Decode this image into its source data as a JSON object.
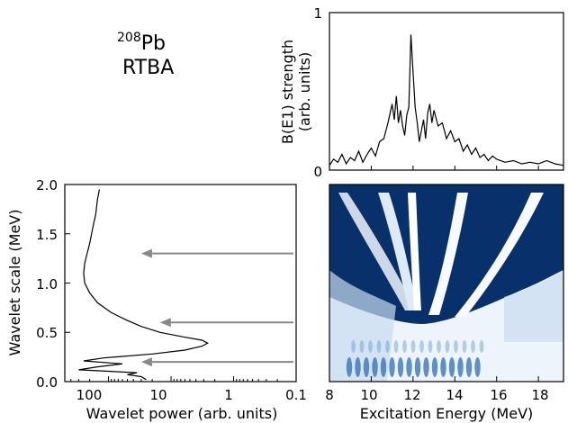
{
  "chart_data": [
    {
      "id": "strength",
      "type": "line",
      "title_sup": "208",
      "title_main": "Pb",
      "title_line2": "RTBA",
      "ylabel_line1": "B(E1) strength",
      "ylabel_line2": "(arb. units)",
      "ylim": [
        0,
        1
      ],
      "xlim": [
        8,
        19.2
      ],
      "yticks": [
        "0",
        "1"
      ],
      "x": [
        8.0,
        8.2,
        8.4,
        8.6,
        8.8,
        9.0,
        9.2,
        9.4,
        9.6,
        9.8,
        10.0,
        10.2,
        10.4,
        10.6,
        10.8,
        11.0,
        11.1,
        11.2,
        11.3,
        11.4,
        11.5,
        11.6,
        11.7,
        11.8,
        11.9,
        12.0,
        12.1,
        12.2,
        12.3,
        12.4,
        12.5,
        12.6,
        12.7,
        12.8,
        12.9,
        13.0,
        13.2,
        13.4,
        13.6,
        13.8,
        14.0,
        14.2,
        14.4,
        14.6,
        14.8,
        15.0,
        15.2,
        15.4,
        15.6,
        15.8,
        16.0,
        16.4,
        16.8,
        17.2,
        17.6,
        18.0,
        18.4,
        18.8,
        19.2
      ],
      "y": [
        0.03,
        0.07,
        0.05,
        0.1,
        0.04,
        0.08,
        0.06,
        0.12,
        0.05,
        0.1,
        0.14,
        0.09,
        0.18,
        0.2,
        0.3,
        0.42,
        0.32,
        0.47,
        0.3,
        0.38,
        0.28,
        0.22,
        0.35,
        0.4,
        0.86,
        0.62,
        0.4,
        0.3,
        0.18,
        0.25,
        0.32,
        0.2,
        0.36,
        0.42,
        0.3,
        0.38,
        0.28,
        0.3,
        0.2,
        0.25,
        0.18,
        0.2,
        0.12,
        0.16,
        0.1,
        0.14,
        0.08,
        0.1,
        0.06,
        0.09,
        0.07,
        0.05,
        0.06,
        0.04,
        0.05,
        0.04,
        0.06,
        0.04,
        0.03
      ]
    },
    {
      "id": "wavelet-power",
      "type": "line",
      "xlabel": "Wavelet power (arb. units)",
      "ylabel": "Wavelet scale (MeV)",
      "x_scale": "log-reversed",
      "xlim": [
        500,
        0.1
      ],
      "ylim": [
        0,
        2
      ],
      "xticks": [
        "100",
        "10",
        "1",
        "0.1"
      ],
      "yticks": [
        "0.0",
        "0.5",
        "1.0",
        "1.5",
        "2.0"
      ],
      "y": [
        0.02,
        0.05,
        0.07,
        0.09,
        0.12,
        0.15,
        0.18,
        0.21,
        0.24,
        0.28,
        0.32,
        0.36,
        0.39,
        0.42,
        0.45,
        0.5,
        0.56,
        0.62,
        0.7,
        0.8,
        0.9,
        1.0,
        1.1,
        1.2,
        1.3,
        1.4,
        1.55,
        1.7,
        1.85,
        1.95
      ],
      "power": [
        25,
        30,
        50,
        35,
        300,
        150,
        60,
        250,
        120,
        20,
        6,
        3.2,
        2.6,
        3.2,
        6,
        15,
        30,
        50,
        90,
        150,
        200,
        240,
        250,
        240,
        220,
        200,
        180,
        160,
        150,
        140
      ],
      "arrows": [
        {
          "scale": 0.2,
          "from_power": 0.1,
          "to_power": 30
        },
        {
          "scale": 0.6,
          "from_power": 0.1,
          "to_power": 15
        },
        {
          "scale": 1.3,
          "from_power": 0.1,
          "to_power": 30
        }
      ]
    },
    {
      "id": "wavelet-map",
      "type": "heatmap",
      "xlabel": "Excitation Energy (MeV)",
      "xlim": [
        8,
        19.2
      ],
      "ylim": [
        0,
        2
      ],
      "xticks": [
        "8",
        "10",
        "12",
        "14",
        "16",
        "18"
      ],
      "colormap": "Blues"
    }
  ]
}
